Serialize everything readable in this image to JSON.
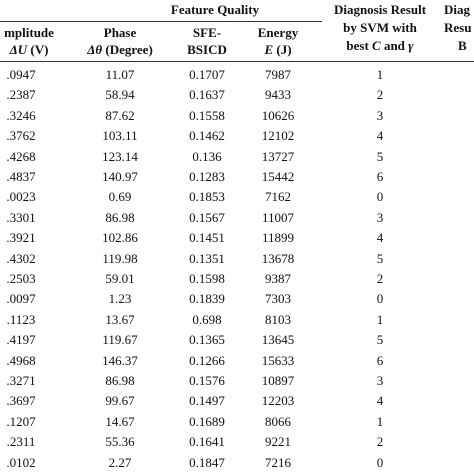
{
  "table": {
    "group_header": "Feature Quality",
    "headers": {
      "amplitude_line1": "mplitude",
      "amplitude_line2_prefix": "ΔU",
      "amplitude_line2_suffix": "(V)",
      "phase_line1": "Phase",
      "phase_line2_prefix": "Δθ",
      "phase_line2_suffix": "(Degree)",
      "sfe_line1": "SFE-",
      "sfe_line2": "BSICD",
      "energy_line1": "Energy",
      "energy_line2_prefix": "E",
      "energy_line2_suffix": "(J)",
      "svm_line1": "Diagnosis Result",
      "svm_line2": "by SVM with",
      "svm_line3": "best C and γ",
      "diag2_line1": "Diag",
      "diag2_line2": "Resu",
      "diag2_line3": "B"
    },
    "rows": [
      {
        "amp": ".0947",
        "phase": "11.07",
        "sfe": "0.1707",
        "energy": "7987",
        "svm": "1"
      },
      {
        "amp": ".2387",
        "phase": "58.94",
        "sfe": "0.1637",
        "energy": "9433",
        "svm": "2"
      },
      {
        "amp": ".3246",
        "phase": "87.62",
        "sfe": "0.1558",
        "energy": "10626",
        "svm": "3"
      },
      {
        "amp": ".3762",
        "phase": "103.11",
        "sfe": "0.1462",
        "energy": "12102",
        "svm": "4"
      },
      {
        "amp": ".4268",
        "phase": "123.14",
        "sfe": "0.136",
        "energy": "13727",
        "svm": "5"
      },
      {
        "amp": ".4837",
        "phase": "140.97",
        "sfe": "0.1283",
        "energy": "15442",
        "svm": "6"
      },
      {
        "amp": ".0023",
        "phase": "0.69",
        "sfe": "0.1853",
        "energy": "7162",
        "svm": "0"
      },
      {
        "amp": ".3301",
        "phase": "86.98",
        "sfe": "0.1567",
        "energy": "11007",
        "svm": "3"
      },
      {
        "amp": ".3921",
        "phase": "102.86",
        "sfe": "0.1451",
        "energy": "11899",
        "svm": "4"
      },
      {
        "amp": ".4302",
        "phase": "119.98",
        "sfe": "0.1351",
        "energy": "13678",
        "svm": "5"
      },
      {
        "amp": ".2503",
        "phase": "59.01",
        "sfe": "0.1598",
        "energy": "9387",
        "svm": "2"
      },
      {
        "amp": ".0097",
        "phase": "1.23",
        "sfe": "0.1839",
        "energy": "7303",
        "svm": "0"
      },
      {
        "amp": ".1123",
        "phase": "13.67",
        "sfe": "0.698",
        "energy": "8103",
        "svm": "1"
      },
      {
        "amp": ".4197",
        "phase": "119.67",
        "sfe": "0.1365",
        "energy": "13645",
        "svm": "5"
      },
      {
        "amp": ".4968",
        "phase": "146.37",
        "sfe": "0.1266",
        "energy": "15633",
        "svm": "6"
      },
      {
        "amp": ".3271",
        "phase": "86.98",
        "sfe": "0.1576",
        "energy": "10897",
        "svm": "3"
      },
      {
        "amp": ".3697",
        "phase": "99.67",
        "sfe": "0.1497",
        "energy": "12203",
        "svm": "4"
      },
      {
        "amp": ".1207",
        "phase": "14.67",
        "sfe": "0.1689",
        "energy": "8066",
        "svm": "1"
      },
      {
        "amp": ".2311",
        "phase": "55.36",
        "sfe": "0.1641",
        "energy": "9221",
        "svm": "2"
      },
      {
        "amp": ".0102",
        "phase": "2.27",
        "sfe": "0.1847",
        "energy": "7216",
        "svm": "0"
      }
    ]
  }
}
